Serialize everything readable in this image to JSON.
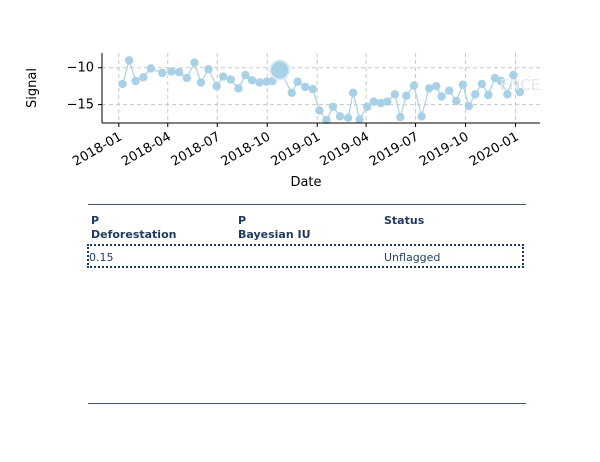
{
  "chart_data": {
    "type": "scatter",
    "xlabel": "Date",
    "ylabel": "Signal",
    "x_ticks": [
      "2018-01",
      "2018-04",
      "2018-07",
      "2018-10",
      "2019-01",
      "2019-04",
      "2019-07",
      "2019-10",
      "2020-01"
    ],
    "y_ticks": [
      "−10",
      "−15"
    ],
    "ylim": [
      -17.5,
      -8
    ],
    "grid": true,
    "watermark": "ENCE",
    "series_color": "#a8d0e6",
    "points": [
      {
        "x": "2018-01-08",
        "y": -12.2
      },
      {
        "x": "2018-01-20",
        "y": -9.0
      },
      {
        "x": "2018-02-01",
        "y": -11.8
      },
      {
        "x": "2018-02-15",
        "y": -11.3
      },
      {
        "x": "2018-03-01",
        "y": -10.1
      },
      {
        "x": "2018-03-22",
        "y": -10.7
      },
      {
        "x": "2018-04-08",
        "y": -10.5
      },
      {
        "x": "2018-04-22",
        "y": -10.6
      },
      {
        "x": "2018-05-06",
        "y": -11.4
      },
      {
        "x": "2018-05-20",
        "y": -9.3
      },
      {
        "x": "2018-06-01",
        "y": -12.0
      },
      {
        "x": "2018-06-15",
        "y": -10.2
      },
      {
        "x": "2018-06-30",
        "y": -12.5
      },
      {
        "x": "2018-07-12",
        "y": -11.2
      },
      {
        "x": "2018-07-26",
        "y": -11.6
      },
      {
        "x": "2018-08-09",
        "y": -12.8
      },
      {
        "x": "2018-08-22",
        "y": -11.0
      },
      {
        "x": "2018-09-03",
        "y": -11.7
      },
      {
        "x": "2018-09-17",
        "y": -12.0
      },
      {
        "x": "2018-09-30",
        "y": -11.9
      },
      {
        "x": "2018-10-11",
        "y": -11.8
      },
      {
        "x": "2018-10-24",
        "y": -10.3,
        "size": "large"
      },
      {
        "x": "2018-11-15",
        "y": -13.4
      },
      {
        "x": "2018-11-26",
        "y": -11.9
      },
      {
        "x": "2018-12-10",
        "y": -12.6
      },
      {
        "x": "2018-12-24",
        "y": -12.9
      },
      {
        "x": "2019-01-05",
        "y": -15.8
      },
      {
        "x": "2019-01-18",
        "y": -17.1
      },
      {
        "x": "2019-01-30",
        "y": -15.3
      },
      {
        "x": "2019-02-12",
        "y": -16.6
      },
      {
        "x": "2019-02-27",
        "y": -16.8
      },
      {
        "x": "2019-03-08",
        "y": -13.4
      },
      {
        "x": "2019-03-20",
        "y": -17.0
      },
      {
        "x": "2019-04-03",
        "y": -15.3
      },
      {
        "x": "2019-04-15",
        "y": -14.6
      },
      {
        "x": "2019-04-28",
        "y": -14.8
      },
      {
        "x": "2019-05-10",
        "y": -14.6
      },
      {
        "x": "2019-05-24",
        "y": -13.6
      },
      {
        "x": "2019-06-03",
        "y": -16.7
      },
      {
        "x": "2019-06-14",
        "y": -13.8
      },
      {
        "x": "2019-06-28",
        "y": -12.4
      },
      {
        "x": "2019-07-12",
        "y": -16.6
      },
      {
        "x": "2019-07-26",
        "y": -12.8
      },
      {
        "x": "2019-08-08",
        "y": -12.5
      },
      {
        "x": "2019-08-18",
        "y": -13.9
      },
      {
        "x": "2019-09-01",
        "y": -13.1
      },
      {
        "x": "2019-09-14",
        "y": -14.5
      },
      {
        "x": "2019-09-26",
        "y": -12.3
      },
      {
        "x": "2019-10-07",
        "y": -15.2
      },
      {
        "x": "2019-10-19",
        "y": -13.6
      },
      {
        "x": "2019-10-31",
        "y": -12.2
      },
      {
        "x": "2019-11-12",
        "y": -13.7
      },
      {
        "x": "2019-11-24",
        "y": -11.4
      },
      {
        "x": "2019-12-05",
        "y": -11.8
      },
      {
        "x": "2019-12-17",
        "y": -13.6
      },
      {
        "x": "2019-12-28",
        "y": -11.0
      },
      {
        "x": "2020-01-09",
        "y": -13.3
      }
    ]
  },
  "table": {
    "headers": [
      {
        "line1": "P",
        "line2": "Deforestation"
      },
      {
        "line1": "P",
        "line2": "Bayesian IU"
      },
      {
        "line1": "Status",
        "line2": ""
      }
    ],
    "rows": [
      [
        "0.15",
        "",
        "Unflagged"
      ]
    ]
  }
}
